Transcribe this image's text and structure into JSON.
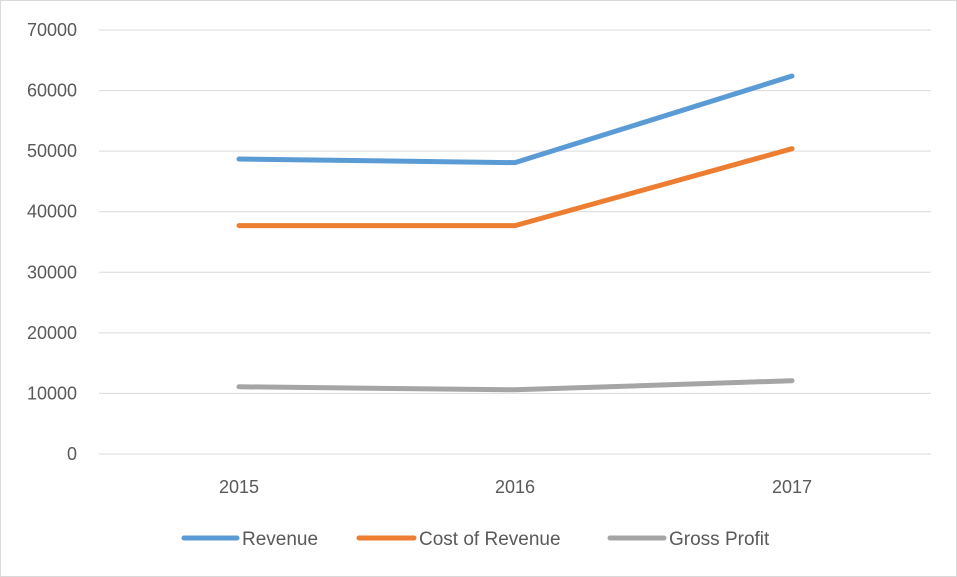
{
  "chart_data": {
    "type": "line",
    "title": "",
    "xlabel": "",
    "ylabel": "",
    "categories": [
      "2015",
      "2016",
      "2017"
    ],
    "ylim": [
      0,
      70000
    ],
    "yticks": [
      0,
      10000,
      20000,
      30000,
      40000,
      50000,
      60000,
      70000
    ],
    "grid": true,
    "legend_position": "bottom",
    "series": [
      {
        "name": "Revenue",
        "color": "#5b9bd5",
        "values": [
          48700,
          48100,
          62400
        ]
      },
      {
        "name": "Cost of Revenue",
        "color": "#ed7d31",
        "values": [
          37700,
          37700,
          50400
        ]
      },
      {
        "name": "Gross Profit",
        "color": "#a5a5a5",
        "values": [
          11100,
          10600,
          12100
        ]
      }
    ]
  }
}
